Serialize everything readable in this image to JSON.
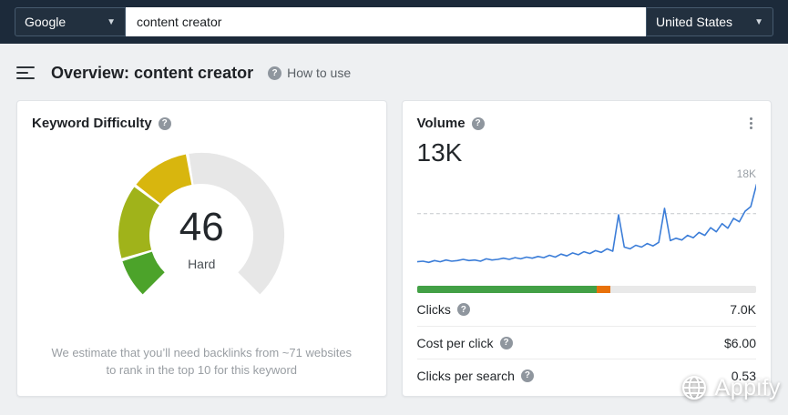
{
  "topbar": {
    "search_engine": "Google",
    "search_value": "content creator",
    "country": "United States"
  },
  "header": {
    "title": "Overview: content creator",
    "help_label": "How to use"
  },
  "kd_card": {
    "title": "Keyword Difficulty",
    "value": "46",
    "difficulty_label": "Hard",
    "footnote_line1": "We estimate that you’ll need backlinks from ~71 websites",
    "footnote_line2": "to rank in the top 10 for this keyword"
  },
  "volume_card": {
    "title": "Volume",
    "value": "13K",
    "chart_max_label": "18K",
    "clicks_bar": {
      "segments": [
        {
          "color": "#43a046",
          "pct": 53
        },
        {
          "color": "#e8710a",
          "pct": 4
        },
        {
          "color": "#e9e9e9",
          "pct": 43
        }
      ]
    },
    "metrics": [
      {
        "label": "Clicks",
        "value": "7.0K"
      },
      {
        "label": "Cost per click",
        "value": "$6.00"
      },
      {
        "label": "Clicks per search",
        "value": "0.53"
      }
    ]
  },
  "watermark": {
    "label": "Appify"
  },
  "chart_data": [
    {
      "type": "gauge",
      "title": "Keyword Difficulty",
      "value": 46,
      "max": 100,
      "label": "Hard",
      "sweep_deg": 270,
      "track_color": "#e7e7e7",
      "segments": [
        {
          "from": 0,
          "to": 10,
          "color": "#4ca32a"
        },
        {
          "from": 10,
          "to": 30,
          "color": "#a0b31a"
        },
        {
          "from": 30,
          "to": 46,
          "color": "#d8b60e"
        }
      ]
    },
    {
      "type": "line",
      "title": "Volume trend",
      "ylim": [
        3.5,
        19
      ],
      "ref_line": 13,
      "line_color": "#3b7dd8",
      "ref_color": "#c3c7cb",
      "series": [
        {
          "name": "Volume (K)",
          "values": [
            4.8,
            4.9,
            4.7,
            5.0,
            4.8,
            5.1,
            4.9,
            5.0,
            5.2,
            5.0,
            5.1,
            4.9,
            5.3,
            5.1,
            5.2,
            5.4,
            5.2,
            5.5,
            5.3,
            5.6,
            5.4,
            5.7,
            5.5,
            5.9,
            5.6,
            6.1,
            5.8,
            6.3,
            6.0,
            6.5,
            6.2,
            6.7,
            6.4,
            7.0,
            6.6,
            12.8,
            7.3,
            7.0,
            7.6,
            7.3,
            7.9,
            7.5,
            8.1,
            13.9,
            8.4,
            8.8,
            8.5,
            9.3,
            8.9,
            9.8,
            9.3,
            10.6,
            9.9,
            11.3,
            10.5,
            12.2,
            11.6,
            13.4,
            14.2,
            18.0
          ]
        }
      ]
    }
  ]
}
